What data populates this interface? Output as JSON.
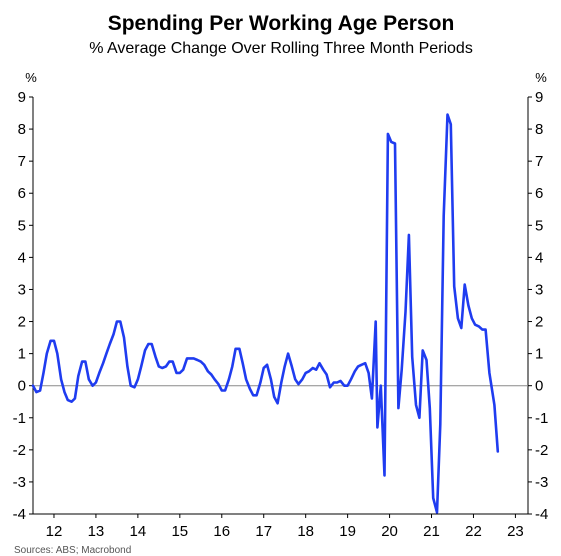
{
  "chart_data": {
    "type": "line",
    "title": "Spending Per Working Age Person",
    "subtitle": "% Average Change Over Rolling Three Month Periods",
    "y_unit_left": "%",
    "y_unit_right": "%",
    "ylim": [
      -4,
      9
    ],
    "yticks": [
      9,
      8,
      7,
      6,
      5,
      4,
      3,
      2,
      1,
      0,
      -1,
      -2,
      -3,
      -4
    ],
    "xlim": [
      2011.5,
      2023.3
    ],
    "xticks": [
      {
        "label": "12",
        "pos": 2012.0
      },
      {
        "label": "13",
        "pos": 2013.0
      },
      {
        "label": "14",
        "pos": 2014.0
      },
      {
        "label": "15",
        "pos": 2015.0
      },
      {
        "label": "16",
        "pos": 2016.0
      },
      {
        "label": "17",
        "pos": 2017.0
      },
      {
        "label": "18",
        "pos": 2018.0
      },
      {
        "label": "19",
        "pos": 2019.0
      },
      {
        "label": "20",
        "pos": 2020.0
      },
      {
        "label": "21",
        "pos": 2021.0
      },
      {
        "label": "22",
        "pos": 2022.0
      },
      {
        "label": "23",
        "pos": 2023.0
      }
    ],
    "zero_line": true,
    "series": [
      {
        "color": "#1f3cf0",
        "points": [
          [
            2011.5,
            0.0
          ],
          [
            2011.58,
            -0.2
          ],
          [
            2011.67,
            -0.15
          ],
          [
            2011.75,
            0.4
          ],
          [
            2011.83,
            1.0
          ],
          [
            2011.92,
            1.4
          ],
          [
            2012.0,
            1.4
          ],
          [
            2012.08,
            1.0
          ],
          [
            2012.17,
            0.2
          ],
          [
            2012.25,
            -0.2
          ],
          [
            2012.33,
            -0.45
          ],
          [
            2012.42,
            -0.5
          ],
          [
            2012.5,
            -0.4
          ],
          [
            2012.58,
            0.3
          ],
          [
            2012.67,
            0.75
          ],
          [
            2012.75,
            0.75
          ],
          [
            2012.83,
            0.2
          ],
          [
            2012.92,
            0.0
          ],
          [
            2013.0,
            0.1
          ],
          [
            2013.08,
            0.4
          ],
          [
            2013.17,
            0.7
          ],
          [
            2013.25,
            1.0
          ],
          [
            2013.33,
            1.3
          ],
          [
            2013.42,
            1.6
          ],
          [
            2013.5,
            2.0
          ],
          [
            2013.58,
            2.0
          ],
          [
            2013.67,
            1.5
          ],
          [
            2013.75,
            0.6
          ],
          [
            2013.83,
            0.0
          ],
          [
            2013.92,
            -0.05
          ],
          [
            2014.0,
            0.2
          ],
          [
            2014.08,
            0.6
          ],
          [
            2014.17,
            1.1
          ],
          [
            2014.25,
            1.3
          ],
          [
            2014.33,
            1.3
          ],
          [
            2014.42,
            0.9
          ],
          [
            2014.5,
            0.6
          ],
          [
            2014.58,
            0.55
          ],
          [
            2014.67,
            0.6
          ],
          [
            2014.75,
            0.75
          ],
          [
            2014.83,
            0.75
          ],
          [
            2014.92,
            0.4
          ],
          [
            2015.0,
            0.4
          ],
          [
            2015.08,
            0.5
          ],
          [
            2015.17,
            0.85
          ],
          [
            2015.25,
            0.85
          ],
          [
            2015.33,
            0.85
          ],
          [
            2015.42,
            0.8
          ],
          [
            2015.5,
            0.75
          ],
          [
            2015.58,
            0.65
          ],
          [
            2015.67,
            0.45
          ],
          [
            2015.75,
            0.35
          ],
          [
            2015.83,
            0.2
          ],
          [
            2015.92,
            0.05
          ],
          [
            2016.0,
            -0.15
          ],
          [
            2016.08,
            -0.15
          ],
          [
            2016.17,
            0.2
          ],
          [
            2016.25,
            0.6
          ],
          [
            2016.33,
            1.15
          ],
          [
            2016.42,
            1.15
          ],
          [
            2016.5,
            0.7
          ],
          [
            2016.58,
            0.2
          ],
          [
            2016.67,
            -0.1
          ],
          [
            2016.75,
            -0.3
          ],
          [
            2016.83,
            -0.3
          ],
          [
            2016.92,
            0.1
          ],
          [
            2017.0,
            0.55
          ],
          [
            2017.08,
            0.65
          ],
          [
            2017.17,
            0.2
          ],
          [
            2017.25,
            -0.35
          ],
          [
            2017.33,
            -0.55
          ],
          [
            2017.42,
            0.1
          ],
          [
            2017.5,
            0.6
          ],
          [
            2017.58,
            1.0
          ],
          [
            2017.67,
            0.6
          ],
          [
            2017.75,
            0.2
          ],
          [
            2017.83,
            0.05
          ],
          [
            2017.92,
            0.2
          ],
          [
            2018.0,
            0.4
          ],
          [
            2018.08,
            0.45
          ],
          [
            2018.17,
            0.55
          ],
          [
            2018.25,
            0.5
          ],
          [
            2018.33,
            0.7
          ],
          [
            2018.42,
            0.5
          ],
          [
            2018.5,
            0.35
          ],
          [
            2018.58,
            -0.05
          ],
          [
            2018.67,
            0.1
          ],
          [
            2018.75,
            0.1
          ],
          [
            2018.83,
            0.15
          ],
          [
            2018.92,
            0.0
          ],
          [
            2019.0,
            0.0
          ],
          [
            2019.08,
            0.2
          ],
          [
            2019.17,
            0.45
          ],
          [
            2019.25,
            0.6
          ],
          [
            2019.33,
            0.65
          ],
          [
            2019.42,
            0.7
          ],
          [
            2019.5,
            0.4
          ],
          [
            2019.58,
            -0.4
          ],
          [
            2019.67,
            2.0
          ],
          [
            2019.71,
            -1.3
          ],
          [
            2019.79,
            0.0
          ],
          [
            2019.88,
            -2.8
          ],
          [
            2019.96,
            7.85
          ],
          [
            2020.04,
            7.6
          ],
          [
            2020.13,
            7.55
          ],
          [
            2020.21,
            -0.7
          ],
          [
            2020.29,
            0.5
          ],
          [
            2020.38,
            2.3
          ],
          [
            2020.46,
            4.7
          ],
          [
            2020.54,
            0.9
          ],
          [
            2020.63,
            -0.6
          ],
          [
            2020.71,
            -1.0
          ],
          [
            2020.79,
            1.1
          ],
          [
            2020.88,
            0.8
          ],
          [
            2020.96,
            -0.7
          ],
          [
            2021.04,
            -3.5
          ],
          [
            2021.13,
            -3.95
          ],
          [
            2021.21,
            -1.2
          ],
          [
            2021.29,
            5.3
          ],
          [
            2021.38,
            8.45
          ],
          [
            2021.46,
            8.15
          ],
          [
            2021.54,
            3.1
          ],
          [
            2021.63,
            2.1
          ],
          [
            2021.71,
            1.8
          ],
          [
            2021.79,
            3.15
          ],
          [
            2021.88,
            2.5
          ],
          [
            2021.96,
            2.1
          ],
          [
            2022.04,
            1.9
          ],
          [
            2022.13,
            1.85
          ],
          [
            2022.21,
            1.75
          ],
          [
            2022.29,
            1.75
          ],
          [
            2022.38,
            0.4
          ],
          [
            2022.5,
            -0.6
          ],
          [
            2022.58,
            -2.05
          ]
        ]
      }
    ],
    "source": "Sources: ABS; Macrobond"
  }
}
